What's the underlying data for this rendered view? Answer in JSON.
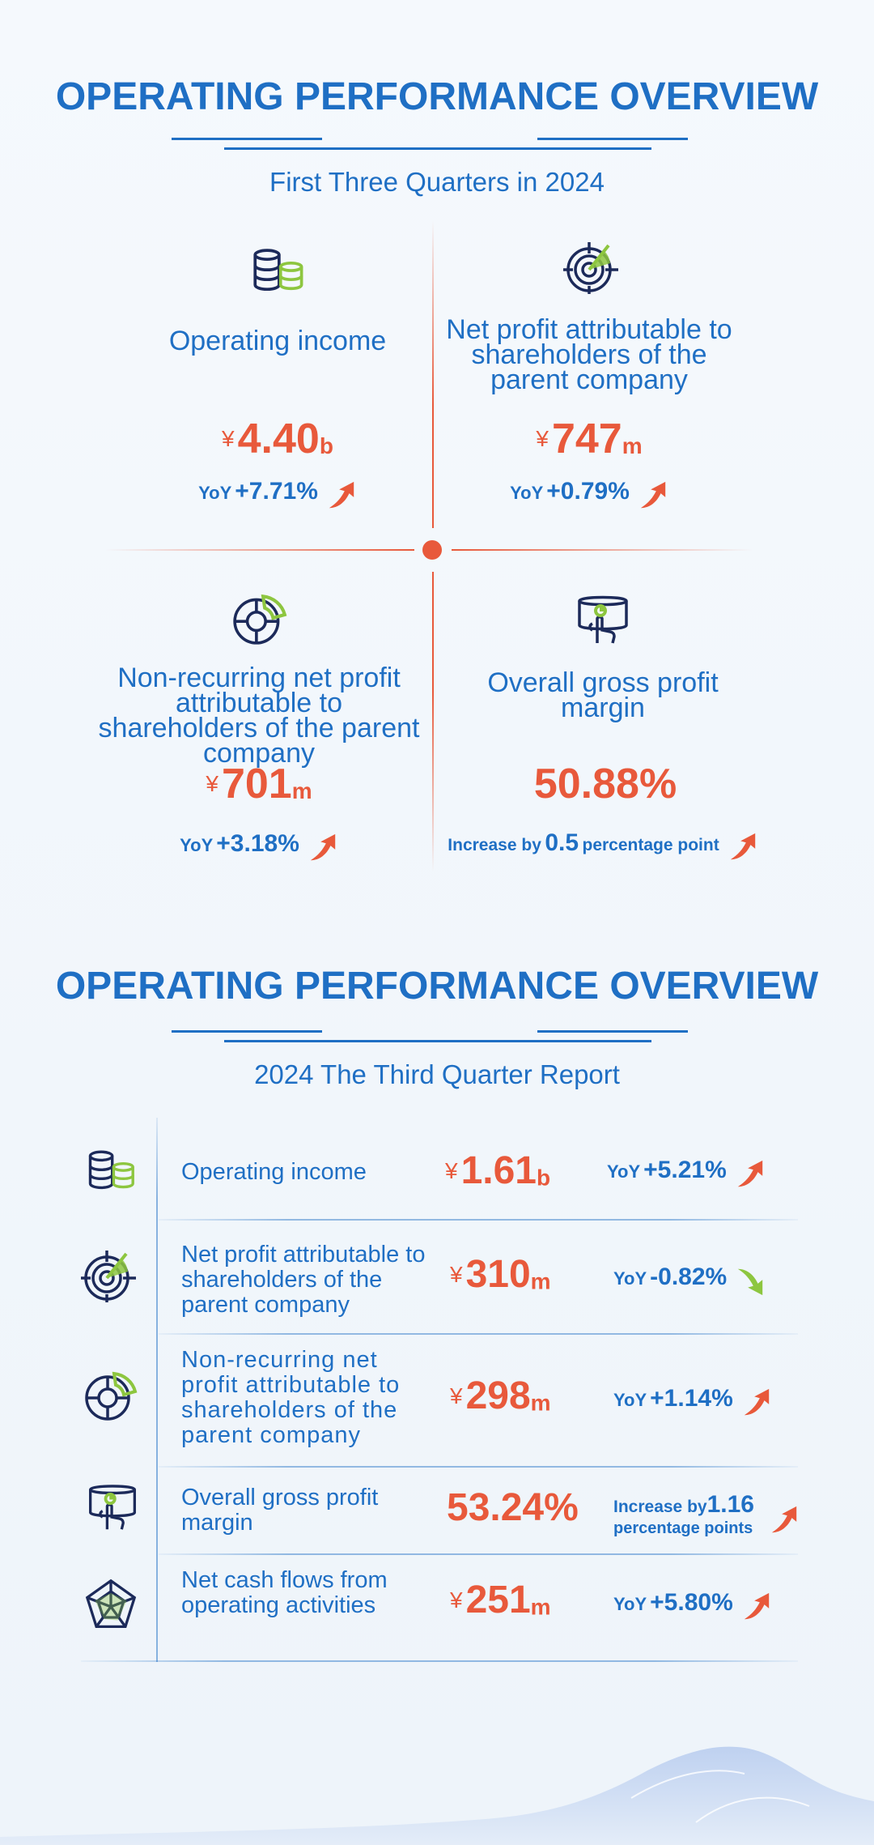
{
  "section1": {
    "title": "OPERATING PERFORMANCE OVERVIEW",
    "subtitle": "First Three Quarters in 2024",
    "cards": [
      {
        "label": "Operating income",
        "currency": "¥",
        "value": "4.40",
        "unit": "b",
        "yoy_prefix": "YoY",
        "change": "+7.71%",
        "icon": "coin-stack-icon",
        "trend": "up"
      },
      {
        "label": "Net profit attributable to shareholders of the parent company",
        "currency": "¥",
        "value": "747",
        "unit": "m",
        "yoy_prefix": "YoY",
        "change": "+0.79%",
        "icon": "target-icon",
        "trend": "up"
      },
      {
        "label": "Non-recurring net profit attributable to shareholders of the parent company",
        "currency": "¥",
        "value": "701",
        "unit": "m",
        "yoy_prefix": "YoY",
        "change": "+3.18%",
        "icon": "donut-chart-icon",
        "trend": "up"
      },
      {
        "label": "Overall gross profit margin",
        "value": "50.88%",
        "change_prefix": "Increase by",
        "change": "0.5",
        "change_suffix": "percentage point",
        "icon": "touch-screen-icon",
        "trend": "up"
      }
    ]
  },
  "section2": {
    "title": "OPERATING PERFORMANCE OVERVIEW",
    "subtitle": "2024 The Third Quarter Report",
    "rows": [
      {
        "label": "Operating income",
        "currency": "¥",
        "value": "1.61",
        "unit": "b",
        "yoy_prefix": "YoY",
        "change": "+5.21%",
        "icon": "coin-stack-icon",
        "trend": "up"
      },
      {
        "label": "Net profit attributable to shareholders of the parent company",
        "currency": "¥",
        "value": "310",
        "unit": "m",
        "yoy_prefix": "YoY",
        "change": "-0.82%",
        "icon": "target-icon",
        "trend": "down"
      },
      {
        "label": "Non-recurring net profit attributable to shareholders of the parent company",
        "currency": "¥",
        "value": "298",
        "unit": "m",
        "yoy_prefix": "YoY",
        "change": "+1.14%",
        "icon": "donut-chart-icon",
        "trend": "up"
      },
      {
        "label": "Overall gross profit margin",
        "value": "53.24%",
        "change_prefix": "Increase by",
        "change": "1.16",
        "change_suffix": "percentage points",
        "icon": "touch-screen-icon",
        "trend": "up"
      },
      {
        "label": "Net cash flows from operating activities",
        "currency": "¥",
        "value": "251",
        "unit": "m",
        "yoy_prefix": "YoY",
        "change": "+5.80%",
        "icon": "radar-chart-icon",
        "trend": "up"
      }
    ]
  },
  "colors": {
    "primary": "#1f6fc4",
    "accent": "#e8593b",
    "green": "#8dc63f",
    "dark": "#1c2a5a"
  }
}
